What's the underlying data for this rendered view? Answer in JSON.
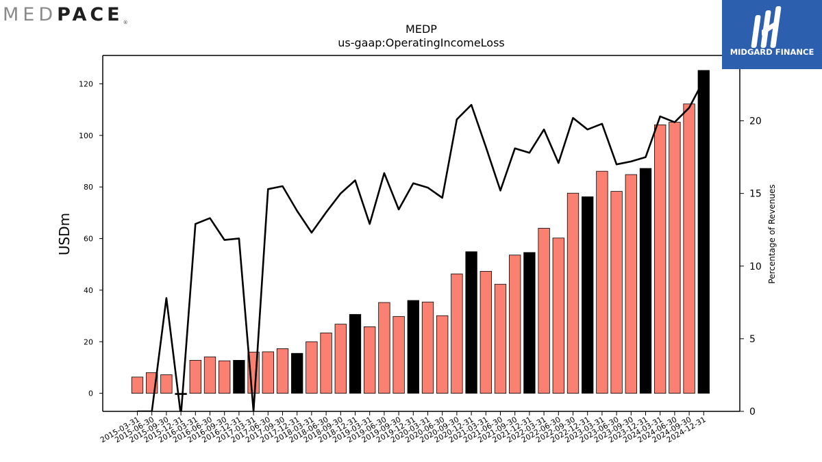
{
  "logos": {
    "left_light": "MED",
    "left_bold": "PACE",
    "left_mark": "®",
    "right_text": "MIDGARD FINANCE",
    "right_icon": "midgard-m-icon",
    "right_bg": "#2c5fae"
  },
  "chart_data": {
    "type": "bar",
    "title": "MEDP",
    "subtitle": "us-gaap:OperatingIncomeLoss",
    "ylabel": "USDm",
    "y2label": "Percentage of Revenues",
    "ylim": [
      -7,
      131
    ],
    "y2lim": [
      0,
      24.5
    ],
    "yticks": [
      0,
      20,
      40,
      60,
      80,
      100,
      120
    ],
    "y2ticks": [
      0,
      5,
      10,
      15,
      20
    ],
    "categories": [
      "2015-03-31",
      "2015-06-30",
      "2015-09-30",
      "2015-12-31",
      "2016-03-31",
      "2016-06-30",
      "2016-09-30",
      "2016-12-31",
      "2017-03-31",
      "2017-06-30",
      "2017-09-30",
      "2017-12-31",
      "2018-03-31",
      "2018-06-30",
      "2018-09-30",
      "2018-12-31",
      "2019-03-31",
      "2019-06-30",
      "2019-09-30",
      "2019-12-31",
      "2020-03-31",
      "2020-06-30",
      "2020-09-30",
      "2020-12-31",
      "2021-03-31",
      "2021-06-30",
      "2021-09-30",
      "2021-12-31",
      "2022-03-31",
      "2022-06-30",
      "2022-09-30",
      "2022-12-31",
      "2023-03-31",
      "2023-06-30",
      "2023-09-30",
      "2023-12-31",
      "2024-03-31",
      "2024-06-30",
      "2024-09-30",
      "2024-12-31"
    ],
    "series": [
      {
        "kind": "bar",
        "axis": "left",
        "values": [
          6.3,
          8.0,
          7.2,
          -0.5,
          12.8,
          14.1,
          12.6,
          12.8,
          16.0,
          16.1,
          17.3,
          15.5,
          20.0,
          23.4,
          26.8,
          30.6,
          25.8,
          35.2,
          29.8,
          36.0,
          35.4,
          30.1,
          46.3,
          54.9,
          47.3,
          42.3,
          53.6,
          54.6,
          64.0,
          60.2,
          77.6,
          76.2,
          86.1,
          78.3,
          84.8,
          87.2,
          104.1,
          105.1,
          112.2,
          125.2
        ],
        "highlight_color": "#000000",
        "bar_color": "#fa8072",
        "highlight": [
          false,
          false,
          false,
          true,
          false,
          false,
          false,
          true,
          false,
          false,
          false,
          true,
          false,
          false,
          false,
          true,
          false,
          false,
          false,
          true,
          false,
          false,
          false,
          true,
          false,
          false,
          false,
          true,
          false,
          false,
          false,
          true,
          false,
          false,
          false,
          true,
          false,
          false,
          false,
          true
        ]
      },
      {
        "kind": "line",
        "axis": "right",
        "color": "#000000",
        "values": [
          0.0,
          0.0,
          7.8,
          -0.3,
          12.9,
          13.3,
          11.8,
          11.9,
          0.0,
          15.3,
          15.5,
          13.8,
          12.3,
          13.7,
          15.0,
          15.9,
          12.9,
          16.4,
          13.9,
          15.7,
          15.4,
          14.7,
          20.1,
          21.1,
          18.2,
          15.2,
          18.1,
          17.8,
          19.4,
          17.1,
          20.2,
          19.4,
          19.8,
          17.0,
          17.2,
          17.5,
          20.3,
          19.9,
          20.9,
          22.8
        ]
      }
    ]
  }
}
